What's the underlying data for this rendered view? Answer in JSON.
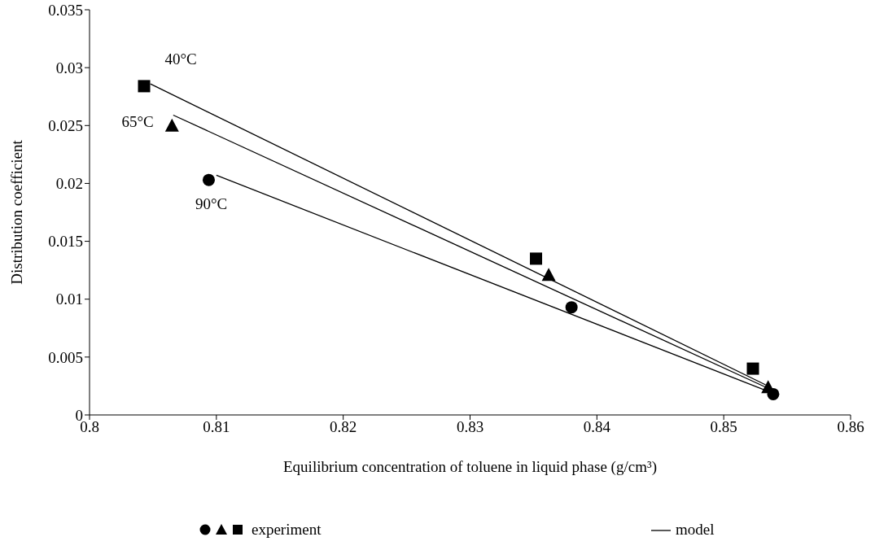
{
  "chart_data": {
    "type": "scatter",
    "xlabel": "Equilibrium concentration of toluene in liquid phase (g/cm³)",
    "ylabel": "Distribution coefficient",
    "xlim": [
      0.8,
      0.86
    ],
    "xticks": [
      0.8,
      0.81,
      0.82,
      0.83,
      0.84,
      0.85,
      0.86
    ],
    "ylim": [
      0,
      0.035
    ],
    "yticks": [
      0,
      0.005,
      0.01,
      0.015,
      0.02,
      0.025,
      0.03,
      0.035
    ],
    "series": [
      {
        "name": "40°C",
        "marker": "square",
        "color": "#000000",
        "x": [
          0.8043,
          0.8352,
          0.8523
        ],
        "values": [
          0.0284,
          0.0135,
          0.004
        ]
      },
      {
        "name": "65°C",
        "marker": "triangle",
        "color": "#000000",
        "x": [
          0.8065,
          0.8362,
          0.8535
        ],
        "values": [
          0.025,
          0.0121,
          0.0024
        ]
      },
      {
        "name": "90°C",
        "marker": "circle",
        "color": "#000000",
        "x": [
          0.8094,
          0.838,
          0.8539
        ],
        "values": [
          0.0203,
          0.0093,
          0.0018
        ]
      },
      {
        "type": "line",
        "color": "#000000",
        "x": [
          0.8048,
          0.8533
        ],
        "values": [
          0.0286,
          0.0026
        ]
      },
      {
        "type": "line",
        "color": "#000000",
        "x": [
          0.8066,
          0.8535
        ],
        "values": [
          0.0259,
          0.0023
        ]
      },
      {
        "type": "line",
        "color": "#000000",
        "x": [
          0.81,
          0.8536
        ],
        "values": [
          0.0207,
          0.002
        ]
      }
    ],
    "annotations": [
      "experiment",
      "model"
    ],
    "grid": false
  }
}
